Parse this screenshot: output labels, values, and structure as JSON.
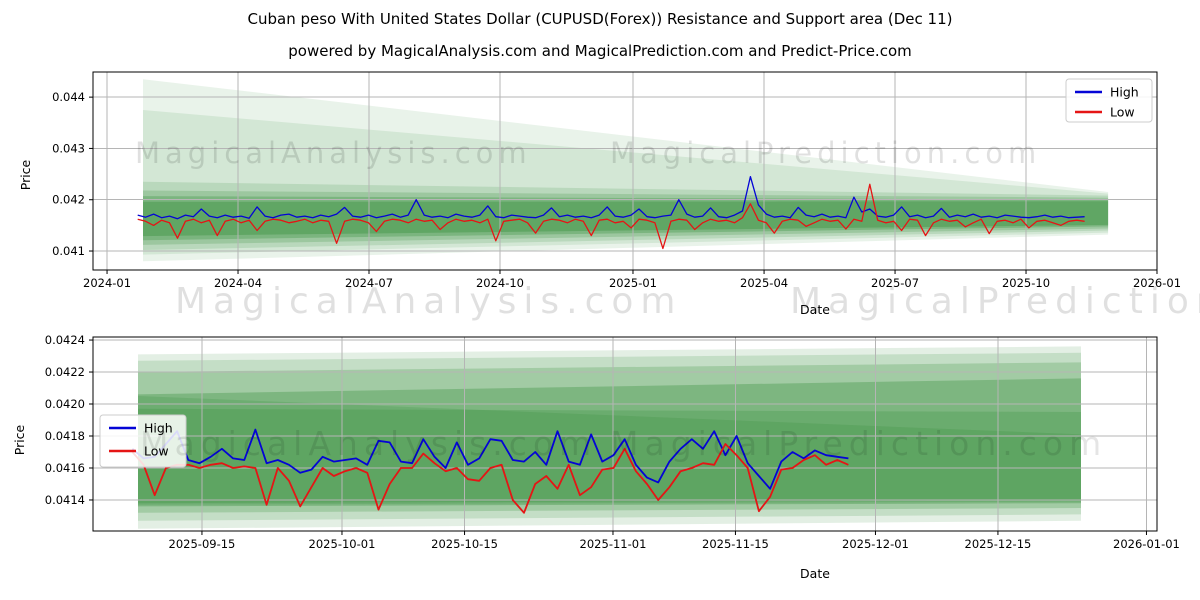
{
  "title": "Cuban peso With United States Dollar (CUPUSD(Forex)) Resistance and Support area (Dec 11)",
  "subtitle": "powered by MagicalAnalysis.com and MagicalPrediction.com and Predict-Price.com",
  "watermarks": {
    "analysis": "MagicalAnalysis.com",
    "prediction": "MagicalPrediction.com"
  },
  "colors": {
    "high": "#0404d6",
    "low": "#e51515",
    "band_green_rgb": "40,135,45",
    "grid": "#b5b5b5",
    "axis": "#000000",
    "legend_bg": "rgba(255,255,255,0.85)",
    "legend_border": "#cccccc"
  },
  "chart_data": [
    {
      "type": "line",
      "xlabel": "Date",
      "ylabel": "Price",
      "ylim": [
        0.04063,
        0.04449
      ],
      "yticks": [
        {
          "v": 0.041,
          "label": "0.041"
        },
        {
          "v": 0.042,
          "label": "0.042"
        },
        {
          "v": 0.043,
          "label": "0.043"
        },
        {
          "v": 0.044,
          "label": "0.044"
        }
      ],
      "xticks": [
        {
          "f": 0.0132,
          "label": "2024-01"
        },
        {
          "f": 0.1363,
          "label": "2024-04"
        },
        {
          "f": 0.2594,
          "label": "2024-07"
        },
        {
          "f": 0.3825,
          "label": "2024-10"
        },
        {
          "f": 0.5075,
          "label": "2025-01"
        },
        {
          "f": 0.6307,
          "label": "2025-04"
        },
        {
          "f": 0.7538,
          "label": "2025-07"
        },
        {
          "f": 0.8769,
          "label": "2025-10"
        },
        {
          "f": 1.0,
          "label": "2026-01"
        }
      ],
      "bands": {
        "x0": 0.047,
        "x1": 0.954,
        "wedges": [
          {
            "t0": 0.04435,
            "b0": 0.0408,
            "t1": 0.04215,
            "b1": 0.04132,
            "o": 0.1
          },
          {
            "t0": 0.04375,
            "b0": 0.04093,
            "t1": 0.04212,
            "b1": 0.04136,
            "o": 0.11
          },
          {
            "t0": 0.04235,
            "b0": 0.04102,
            "t1": 0.04208,
            "b1": 0.0414,
            "o": 0.15
          },
          {
            "t0": 0.04218,
            "b0": 0.04112,
            "t1": 0.04204,
            "b1": 0.04144,
            "o": 0.2
          },
          {
            "t0": 0.04207,
            "b0": 0.04121,
            "t1": 0.042,
            "b1": 0.04148,
            "o": 0.28
          },
          {
            "t0": 0.04196,
            "b0": 0.04129,
            "t1": 0.04197,
            "b1": 0.04151,
            "o": 0.32
          }
        ]
      },
      "legend_labels": [
        "High",
        "Low"
      ],
      "series": [
        {
          "name": "High",
          "color": "#0404d6",
          "x0": 0.042,
          "x1": 0.932,
          "values": [
            0.0417,
            0.04166,
            0.04172,
            0.04165,
            0.04168,
            0.04163,
            0.0417,
            0.04167,
            0.04182,
            0.04168,
            0.04165,
            0.0417,
            0.04166,
            0.04168,
            0.04164,
            0.04186,
            0.04168,
            0.04165,
            0.0417,
            0.04172,
            0.04166,
            0.04168,
            0.04165,
            0.0417,
            0.04167,
            0.04172,
            0.04185,
            0.04168,
            0.04166,
            0.0417,
            0.04165,
            0.04168,
            0.04172,
            0.04166,
            0.0417,
            0.042,
            0.0417,
            0.04166,
            0.04168,
            0.04165,
            0.04172,
            0.04168,
            0.04166,
            0.0417,
            0.04188,
            0.04167,
            0.04165,
            0.0417,
            0.04168,
            0.04166,
            0.04165,
            0.0417,
            0.04184,
            0.04167,
            0.0417,
            0.04166,
            0.04168,
            0.04165,
            0.0417,
            0.04186,
            0.04168,
            0.04166,
            0.0417,
            0.04182,
            0.04167,
            0.04165,
            0.04168,
            0.0417,
            0.042,
            0.04172,
            0.04166,
            0.04168,
            0.04184,
            0.04167,
            0.04165,
            0.0417,
            0.04178,
            0.04245,
            0.0419,
            0.04172,
            0.04166,
            0.04168,
            0.04165,
            0.04185,
            0.0417,
            0.04167,
            0.04172,
            0.04166,
            0.04168,
            0.04165,
            0.04205,
            0.04176,
            0.04182,
            0.04168,
            0.04166,
            0.0417,
            0.04186,
            0.04167,
            0.0417,
            0.04165,
            0.04168,
            0.04183,
            0.04166,
            0.0417,
            0.04167,
            0.04172,
            0.04166,
            0.04168,
            0.04165,
            0.0417,
            0.04168,
            0.04166,
            0.04165,
            0.04167,
            0.0417,
            0.04166,
            0.04168,
            0.04165,
            0.04166,
            0.04167
          ]
        },
        {
          "name": "Low",
          "color": "#e51515",
          "x0": 0.042,
          "x1": 0.932,
          "values": [
            0.04162,
            0.04158,
            0.0415,
            0.0416,
            0.04155,
            0.04125,
            0.04158,
            0.04162,
            0.04155,
            0.0416,
            0.0413,
            0.04158,
            0.04162,
            0.04155,
            0.0416,
            0.0414,
            0.04158,
            0.04162,
            0.0416,
            0.04155,
            0.04158,
            0.04162,
            0.04155,
            0.0416,
            0.04158,
            0.04115,
            0.04158,
            0.04162,
            0.0416,
            0.04155,
            0.04138,
            0.04158,
            0.04162,
            0.0416,
            0.04155,
            0.04162,
            0.04158,
            0.0416,
            0.04142,
            0.04155,
            0.04162,
            0.04158,
            0.0416,
            0.04155,
            0.04162,
            0.0412,
            0.04158,
            0.0416,
            0.04162,
            0.04155,
            0.04135,
            0.04158,
            0.04162,
            0.0416,
            0.04155,
            0.04162,
            0.04158,
            0.0413,
            0.0416,
            0.04162,
            0.04155,
            0.04158,
            0.04145,
            0.04162,
            0.0416,
            0.04155,
            0.04105,
            0.04158,
            0.04162,
            0.0416,
            0.04142,
            0.04155,
            0.04162,
            0.04158,
            0.0416,
            0.04155,
            0.04165,
            0.04192,
            0.0416,
            0.04155,
            0.04135,
            0.04158,
            0.04162,
            0.0416,
            0.04148,
            0.04155,
            0.04162,
            0.04158,
            0.0416,
            0.04143,
            0.04162,
            0.04158,
            0.0423,
            0.0416,
            0.04155,
            0.04158,
            0.0414,
            0.04162,
            0.0416,
            0.0413,
            0.04155,
            0.04162,
            0.04158,
            0.0416,
            0.04147,
            0.04155,
            0.04162,
            0.04134,
            0.04158,
            0.0416,
            0.04155,
            0.04162,
            0.04145,
            0.04158,
            0.0416,
            0.04155,
            0.0415,
            0.04158,
            0.0416,
            0.04158
          ]
        }
      ]
    },
    {
      "type": "line",
      "xlabel": "Date",
      "ylabel": "Price",
      "ylim": [
        0.041206,
        0.042419
      ],
      "yticks": [
        {
          "v": 0.0414,
          "label": "0.0414"
        },
        {
          "v": 0.0416,
          "label": "0.0416"
        },
        {
          "v": 0.0418,
          "label": "0.0418"
        },
        {
          "v": 0.042,
          "label": "0.0420"
        },
        {
          "v": 0.0422,
          "label": "0.0422"
        },
        {
          "v": 0.0424,
          "label": "0.0424"
        }
      ],
      "xticks": [
        {
          "f": 0.1024,
          "label": "2025-09-15"
        },
        {
          "f": 0.234,
          "label": "2025-10-01"
        },
        {
          "f": 0.3492,
          "label": "2025-10-15"
        },
        {
          "f": 0.4887,
          "label": "2025-11-01"
        },
        {
          "f": 0.6038,
          "label": "2025-11-15"
        },
        {
          "f": 0.7354,
          "label": "2025-12-01"
        },
        {
          "f": 0.8505,
          "label": "2025-12-15"
        },
        {
          "f": 0.9901,
          "label": "2026-01-01"
        }
      ],
      "bands": {
        "x0": 0.0423,
        "x1": 0.9286,
        "wedges": [
          {
            "t0": 0.04231,
            "b0": 0.04122,
            "t1": 0.04236,
            "b1": 0.04127,
            "o": 0.13
          },
          {
            "t0": 0.04227,
            "b0": 0.04127,
            "t1": 0.04232,
            "b1": 0.04131,
            "o": 0.16
          },
          {
            "t0": 0.0422,
            "b0": 0.04132,
            "t1": 0.04226,
            "b1": 0.04135,
            "o": 0.22
          },
          {
            "t0": 0.04206,
            "b0": 0.04136,
            "t1": 0.04216,
            "b1": 0.04138,
            "o": 0.3
          },
          {
            "t0": 0.04205,
            "b0": 0.04137,
            "t1": 0.04181,
            "b1": 0.04139,
            "o": 0.18
          },
          {
            "t0": 0.04197,
            "b0": 0.04138,
            "t1": 0.04195,
            "b1": 0.0414,
            "o": 0.22
          }
        ]
      },
      "legend_labels": [
        "High",
        "Low"
      ],
      "series": [
        {
          "name": "High",
          "color": "#0404d6",
          "x0": 0.037,
          "x1": 0.71,
          "values": [
            0.04172,
            0.04166,
            0.04167,
            0.04175,
            0.04183,
            0.04165,
            0.04163,
            0.04167,
            0.04172,
            0.04166,
            0.04165,
            0.04184,
            0.04163,
            0.04165,
            0.04162,
            0.04157,
            0.04159,
            0.04167,
            0.04164,
            0.04165,
            0.04166,
            0.04162,
            0.04177,
            0.04176,
            0.04164,
            0.04163,
            0.04178,
            0.04167,
            0.0416,
            0.04176,
            0.04162,
            0.04166,
            0.04178,
            0.04177,
            0.04165,
            0.04164,
            0.0417,
            0.04162,
            0.04183,
            0.04164,
            0.04162,
            0.04181,
            0.04164,
            0.04168,
            0.04178,
            0.04162,
            0.04154,
            0.04151,
            0.04164,
            0.04172,
            0.04178,
            0.04172,
            0.04183,
            0.04168,
            0.0418,
            0.04163,
            0.04155,
            0.04147,
            0.04164,
            0.0417,
            0.04166,
            0.04171,
            0.04168,
            0.04167,
            0.04166
          ]
        },
        {
          "name": "Low",
          "color": "#e51515",
          "x0": 0.037,
          "x1": 0.71,
          "values": [
            0.0417,
            0.04162,
            0.04143,
            0.0416,
            0.04162,
            0.04162,
            0.0416,
            0.04162,
            0.04163,
            0.0416,
            0.04161,
            0.0416,
            0.04137,
            0.0416,
            0.04152,
            0.04136,
            0.04148,
            0.0416,
            0.04155,
            0.04158,
            0.0416,
            0.04157,
            0.04134,
            0.0415,
            0.0416,
            0.0416,
            0.04169,
            0.04163,
            0.04158,
            0.0416,
            0.04153,
            0.04152,
            0.0416,
            0.04162,
            0.0414,
            0.04132,
            0.0415,
            0.04155,
            0.04147,
            0.04162,
            0.04143,
            0.04148,
            0.04159,
            0.0416,
            0.04172,
            0.04158,
            0.0415,
            0.0414,
            0.04148,
            0.04158,
            0.0416,
            0.04163,
            0.04162,
            0.04175,
            0.04168,
            0.0416,
            0.04133,
            0.04142,
            0.04159,
            0.0416,
            0.04165,
            0.04168,
            0.04162,
            0.04165,
            0.04162
          ]
        }
      ]
    }
  ]
}
